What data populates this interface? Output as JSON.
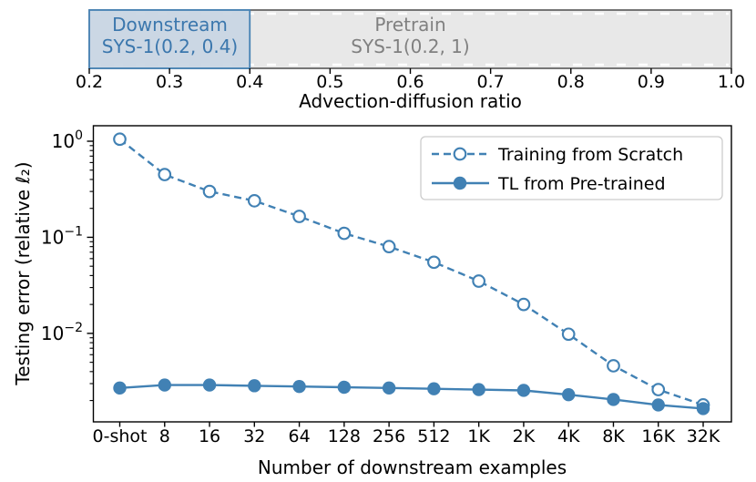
{
  "colors": {
    "accent": "#4181b4",
    "downstream_fill": "#c8d5e3",
    "downstream_border": "#4682b4",
    "downstream_text": "#3b77ad",
    "pretrain_fill": "#e8e8e8",
    "pretrain_border": "#404040",
    "pretrain_text": "#808080",
    "hatch_dash": "#ffffff",
    "axis": "#000000",
    "tick_text": "#000000",
    "legend_border": "#cccccc",
    "legend_bg": "#ffffff"
  },
  "chart_data": [
    {
      "id": "system-range-strip",
      "type": "bar",
      "subtype": "horizontal-range-strip",
      "xlabel": "Advection-diffusion ratio",
      "xlim": [
        0.2,
        1.0
      ],
      "xticks": [
        "0.2",
        "0.3",
        "0.4",
        "0.5",
        "0.6",
        "0.7",
        "0.8",
        "0.9",
        "1.0"
      ],
      "regions": [
        {
          "name": "Pretrain",
          "system": "SYS-1(0.2, 1)",
          "range": [
            0.2,
            1.0
          ]
        },
        {
          "name": "Downstream",
          "system": "SYS-1(0.2, 0.4)",
          "range": [
            0.2,
            0.4
          ]
        }
      ]
    },
    {
      "id": "testing-error-vs-downstream-examples",
      "type": "line",
      "xlabel": "Number of downstream examples",
      "ylabel": "Testing error (relative ℓ₂)",
      "yscale": "log",
      "grid": false,
      "ylim": [
        0.0012,
        1.45
      ],
      "ytick_values": [
        1,
        0.1,
        0.01
      ],
      "ytick_labels": [
        {
          "base": "10",
          "exp": "0"
        },
        {
          "base": "10",
          "exp": "−1"
        },
        {
          "base": "10",
          "exp": "−2"
        }
      ],
      "categories": [
        "0-shot",
        "8",
        "16",
        "32",
        "64",
        "128",
        "256",
        "512",
        "1K",
        "2K",
        "4K",
        "8K",
        "16K",
        "32K"
      ],
      "series": [
        {
          "name": "Training from Scratch",
          "line_style": "dashed",
          "marker": "open-circle",
          "values": [
            1.05,
            0.45,
            0.3,
            0.24,
            0.165,
            0.11,
            0.08,
            0.055,
            0.035,
            0.02,
            0.0098,
            0.0046,
            0.0026,
            0.0018
          ]
        },
        {
          "name": "TL from Pre-trained",
          "line_style": "solid",
          "marker": "filled-circle",
          "values": [
            0.0027,
            0.0029,
            0.0029,
            0.00285,
            0.0028,
            0.00275,
            0.0027,
            0.00265,
            0.0026,
            0.00255,
            0.0023,
            0.00205,
            0.0018,
            0.00165
          ]
        }
      ],
      "legend": {
        "position": "upper-right"
      }
    }
  ]
}
